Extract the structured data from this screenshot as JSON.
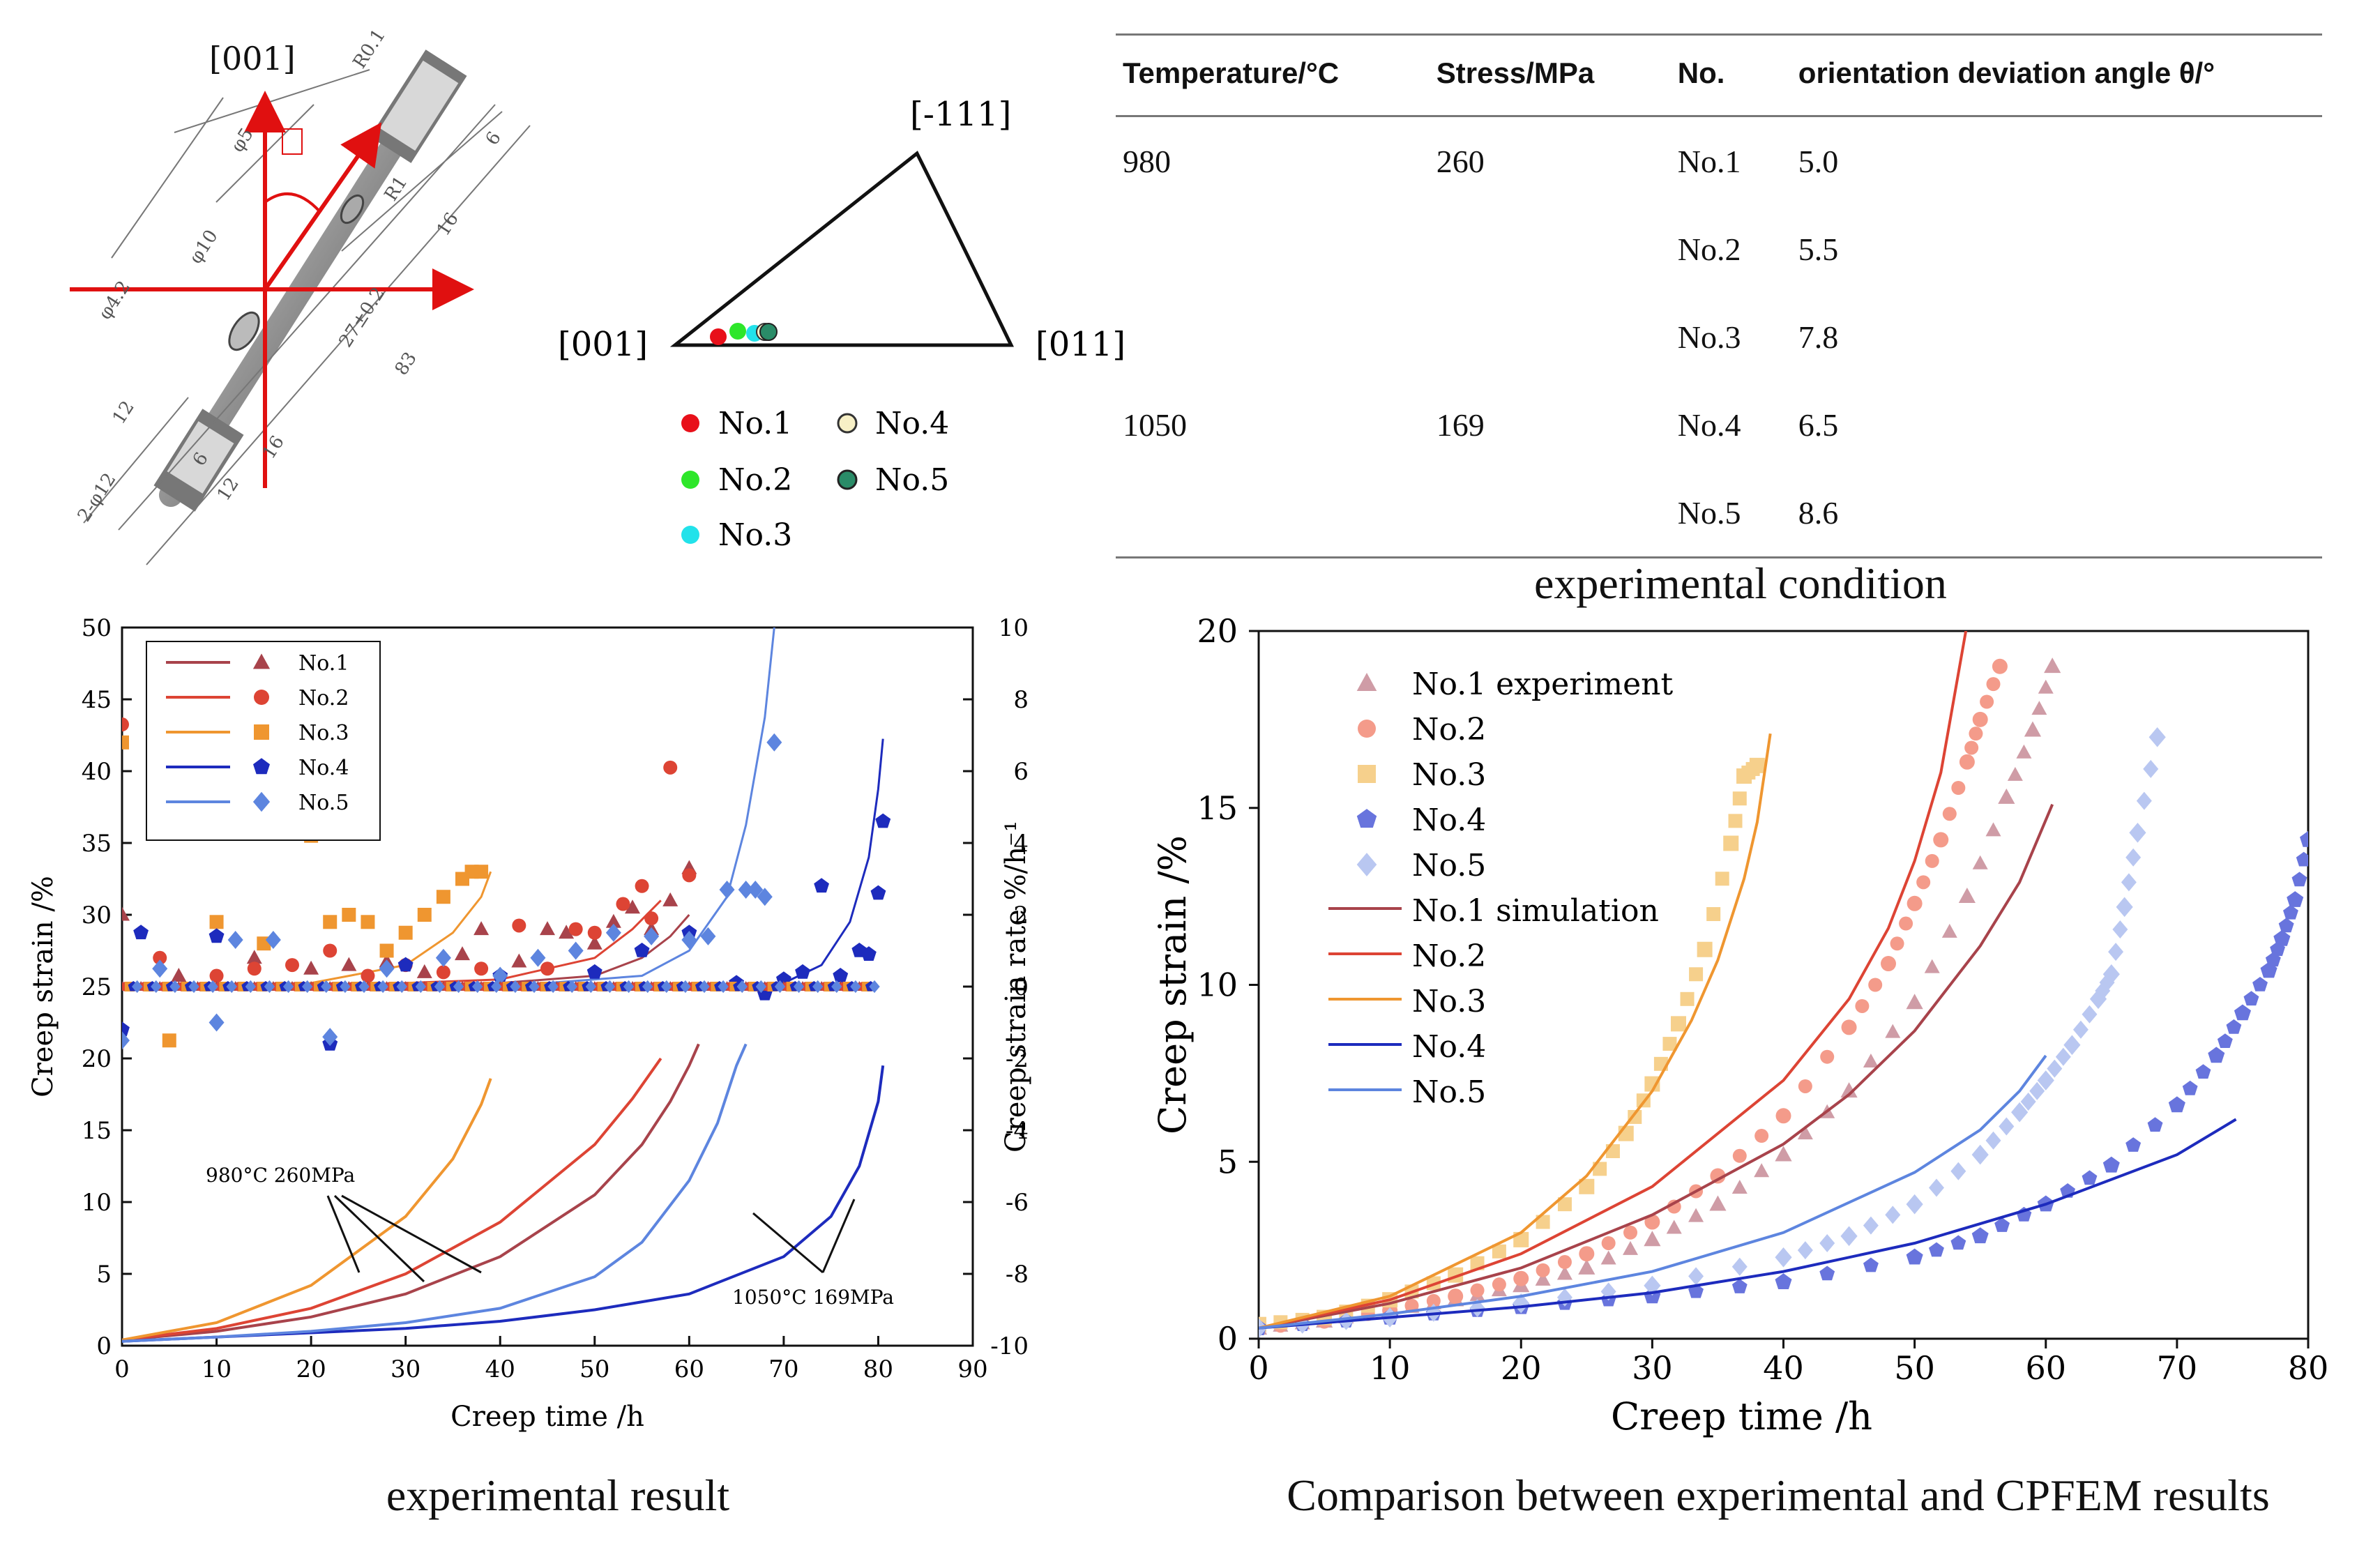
{
  "specimen": {
    "dim_labels": [
      "[001]",
      "R0.1",
      "φ5",
      "R1",
      "16",
      "6",
      "φ10",
      "27±0.2",
      "83",
      "φ4.2",
      "12",
      "2-φ12",
      "6",
      "12",
      "16"
    ]
  },
  "ipf": {
    "labels": {
      "top": "[-111]",
      "left": "[001]",
      "right": "[011]"
    },
    "legend": [
      {
        "label": "No.1",
        "color": "#e8101a"
      },
      {
        "label": "No.2",
        "color": "#2ee62a"
      },
      {
        "label": "No.3",
        "color": "#22e2ea"
      },
      {
        "label": "No.4",
        "color": "#f7f0c6"
      },
      {
        "label": "No.5",
        "color": "#2a8c68"
      }
    ]
  },
  "table": {
    "headers": [
      "Temperature/°C",
      "Stress/MPa",
      "No.",
      "orientation deviation angle θ/°"
    ],
    "rows": [
      [
        "980",
        "260",
        "No.1",
        "5.0"
      ],
      [
        "",
        "",
        "No.2",
        "5.5"
      ],
      [
        "",
        "",
        "No.3",
        "7.8"
      ],
      [
        "1050",
        "169",
        "No.4",
        "6.5"
      ],
      [
        "",
        "",
        "No.5",
        "8.6"
      ]
    ]
  },
  "captions": {
    "table": "experimental condition",
    "left": "experimental result",
    "right": "Comparison between experimental and CPFEM results"
  },
  "colors": {
    "no1": "#a8434b",
    "no2": "#dd4434",
    "no3": "#ef9630",
    "no4": "#1d2bbd",
    "no5": "#5d85df",
    "no1_light": "#cf9ca6",
    "no2_light": "#f49b8a",
    "no3_light": "#f6d08c",
    "no4_light": "#6874dd",
    "no5_light": "#b9c7f1"
  },
  "chart_data": [
    {
      "type": "line",
      "title": "",
      "xlabel": "Creep time /h",
      "ylabel": "Creep strain /%",
      "y2label": "Creep strain rate %/h⁻¹",
      "xlim": [
        0,
        90
      ],
      "ylim": [
        0,
        50
      ],
      "y2lim": [
        -10,
        10
      ],
      "xticks": [
        0,
        10,
        20,
        30,
        40,
        50,
        60,
        70,
        80,
        90
      ],
      "yticks": [
        0,
        5,
        10,
        15,
        20,
        25,
        30,
        35,
        40,
        45,
        50
      ],
      "y2ticks": [
        -10,
        -8,
        -6,
        -4,
        -2,
        0,
        2,
        4,
        6,
        8,
        10
      ],
      "legend": [
        "No.1",
        "No.2",
        "No.3",
        "No.4",
        "No.5"
      ],
      "annotations": [
        "980°C 260MPa",
        "1050°C 169MPa"
      ],
      "strain_series": [
        {
          "name": "No.1",
          "x": [
            0,
            10,
            20,
            30,
            40,
            50,
            55,
            58,
            60,
            61
          ],
          "y": [
            0.4,
            1.0,
            2.0,
            3.6,
            6.2,
            10.5,
            14.0,
            17.0,
            19.5,
            21.0
          ]
        },
        {
          "name": "No.2",
          "x": [
            0,
            10,
            20,
            30,
            40,
            50,
            54,
            57
          ],
          "y": [
            0.4,
            1.2,
            2.6,
            5.0,
            8.6,
            14.0,
            17.2,
            20.0
          ]
        },
        {
          "name": "No.3",
          "x": [
            0,
            10,
            20,
            30,
            35,
            38,
            39
          ],
          "y": [
            0.4,
            1.6,
            4.2,
            9.0,
            13.0,
            16.8,
            18.6
          ]
        },
        {
          "name": "No.4",
          "x": [
            0,
            10,
            20,
            30,
            40,
            50,
            60,
            70,
            75,
            78,
            80,
            80.5
          ],
          "y": [
            0.3,
            0.6,
            0.9,
            1.2,
            1.7,
            2.5,
            3.6,
            6.2,
            9.0,
            12.5,
            17.0,
            19.5
          ]
        },
        {
          "name": "No.5",
          "x": [
            0,
            10,
            20,
            30,
            40,
            50,
            55,
            60,
            63,
            65,
            66
          ],
          "y": [
            0.3,
            0.6,
            1.0,
            1.6,
            2.6,
            4.8,
            7.2,
            11.5,
            15.5,
            19.5,
            21.0
          ]
        }
      ],
      "rate_markers": [
        {
          "name": "No.1",
          "marker": "triangle",
          "x": [
            0,
            6,
            14,
            20,
            24,
            28,
            32,
            36,
            38,
            42,
            45,
            47,
            50,
            52,
            54,
            56,
            58,
            60
          ],
          "y": [
            2.0,
            0.3,
            0.8,
            0.5,
            0.6,
            0.7,
            0.4,
            0.9,
            1.6,
            0.7,
            1.6,
            1.5,
            1.2,
            1.8,
            2.2,
            1.6,
            2.4,
            3.3
          ]
        },
        {
          "name": "No.2",
          "marker": "circle",
          "x": [
            0,
            4,
            10,
            14,
            18,
            22,
            26,
            30,
            34,
            38,
            42,
            45,
            48,
            50,
            53,
            55,
            56,
            58,
            60
          ],
          "y": [
            7.3,
            0.8,
            0.3,
            0.5,
            0.6,
            1.0,
            0.3,
            0.6,
            0.4,
            0.5,
            1.7,
            0.5,
            1.6,
            1.5,
            2.3,
            2.8,
            1.9,
            6.1,
            3.1
          ]
        },
        {
          "name": "No.3",
          "marker": "square",
          "x": [
            0,
            5,
            10,
            15,
            20,
            22,
            24,
            26,
            28,
            30,
            32,
            34,
            36,
            37,
            38
          ],
          "y": [
            6.8,
            -1.5,
            1.8,
            1.2,
            4.2,
            1.8,
            2.0,
            1.8,
            1.0,
            1.5,
            2.0,
            2.5,
            3.0,
            3.2,
            3.2
          ]
        },
        {
          "name": "No.4",
          "marker": "pentagon",
          "x": [
            0,
            2,
            10,
            22,
            30,
            40,
            50,
            55,
            60,
            65,
            68,
            70,
            72,
            74,
            76,
            78,
            79,
            80,
            80.5
          ],
          "y": [
            -1.2,
            1.5,
            1.4,
            -1.6,
            0.6,
            0.3,
            0.4,
            1.0,
            1.5,
            0.1,
            -0.2,
            0.2,
            0.4,
            2.8,
            0.3,
            1.0,
            0.9,
            2.6,
            4.6
          ]
        },
        {
          "name": "No.5",
          "marker": "diamond",
          "x": [
            0,
            4,
            10,
            12,
            16,
            22,
            28,
            34,
            40,
            44,
            48,
            52,
            56,
            60,
            62,
            64,
            66,
            67,
            68,
            69
          ],
          "y": [
            -1.5,
            0.5,
            -1.0,
            1.3,
            1.3,
            -1.4,
            0.5,
            0.8,
            0.3,
            0.8,
            1.0,
            1.5,
            1.4,
            1.3,
            1.4,
            2.7,
            2.7,
            2.7,
            2.5,
            6.8
          ]
        }
      ],
      "rate_lines": [
        {
          "name": "No.1",
          "x": [
            0,
            20,
            40,
            50,
            55,
            58,
            60
          ],
          "y": [
            0.0,
            0.0,
            0.1,
            0.3,
            0.8,
            1.4,
            2.0
          ]
        },
        {
          "name": "No.2",
          "x": [
            0,
            20,
            40,
            50,
            54,
            57
          ],
          "y": [
            0.0,
            0.0,
            0.2,
            0.8,
            1.6,
            2.4
          ]
        },
        {
          "name": "No.3",
          "x": [
            0,
            20,
            30,
            35,
            38,
            39
          ],
          "y": [
            0.0,
            0.1,
            0.6,
            1.5,
            2.5,
            3.2
          ]
        },
        {
          "name": "No.4",
          "x": [
            0,
            40,
            60,
            70,
            74,
            77,
            79,
            80,
            80.5
          ],
          "y": [
            0.0,
            0.0,
            0.0,
            0.1,
            0.6,
            1.8,
            3.6,
            5.5,
            6.9
          ]
        },
        {
          "name": "No.5",
          "x": [
            0,
            40,
            55,
            60,
            64,
            66,
            68,
            69
          ],
          "y": [
            0.0,
            0.0,
            0.3,
            1.0,
            2.5,
            4.5,
            7.5,
            10.0
          ]
        }
      ]
    },
    {
      "type": "scatter",
      "title": "",
      "xlabel": "Creep time /h",
      "ylabel": "Creep strain /%",
      "xlim": [
        0,
        80
      ],
      "ylim": [
        0,
        20
      ],
      "xticks": [
        0,
        10,
        20,
        30,
        40,
        50,
        60,
        70,
        80
      ],
      "yticks": [
        0,
        5,
        10,
        15,
        20
      ],
      "legend": [
        "No.1 experiment",
        "No.2",
        "No.3",
        "No.4",
        "No.5",
        "No.1 simulation",
        "No.2",
        "No.3",
        "No.4",
        "No.5"
      ],
      "experiment": [
        {
          "name": "No.1",
          "marker": "triangle",
          "x": [
            0,
            5,
            10,
            15,
            20,
            25,
            30,
            35,
            40,
            45,
            50,
            54,
            57,
            59,
            60.5
          ],
          "y": [
            0.3,
            0.5,
            0.8,
            1.1,
            1.5,
            2.0,
            2.8,
            3.8,
            5.2,
            7.0,
            9.5,
            12.5,
            15.3,
            17.2,
            19.0
          ]
        },
        {
          "name": "No.2",
          "marker": "circle",
          "x": [
            0,
            5,
            10,
            15,
            20,
            25,
            30,
            35,
            40,
            45,
            48,
            50,
            52,
            54,
            55,
            56.5
          ],
          "y": [
            0.3,
            0.5,
            0.8,
            1.2,
            1.7,
            2.4,
            3.3,
            4.6,
            6.3,
            8.8,
            10.6,
            12.3,
            14.1,
            16.3,
            17.5,
            19.0
          ]
        },
        {
          "name": "No.3",
          "marker": "square",
          "x": [
            0,
            5,
            10,
            15,
            20,
            25,
            28,
            30,
            32,
            34,
            36,
            37,
            38
          ],
          "y": [
            0.4,
            0.6,
            1.1,
            1.8,
            2.8,
            4.3,
            5.8,
            7.2,
            8.9,
            11.0,
            14.0,
            15.9,
            16.2
          ]
        },
        {
          "name": "No.4",
          "marker": "pentagon",
          "x": [
            0,
            10,
            20,
            30,
            40,
            50,
            55,
            60,
            65,
            70,
            73,
            75,
            77,
            78,
            79,
            80
          ],
          "y": [
            0.3,
            0.6,
            0.9,
            1.2,
            1.6,
            2.3,
            2.9,
            3.8,
            4.9,
            6.6,
            8.0,
            9.2,
            10.4,
            11.3,
            12.4,
            14.1
          ]
        },
        {
          "name": "No.5",
          "marker": "diamond",
          "x": [
            0,
            10,
            20,
            30,
            40,
            45,
            50,
            55,
            58,
            60,
            62,
            64,
            65,
            66,
            67,
            68.5
          ],
          "y": [
            0.3,
            0.6,
            1.0,
            1.5,
            2.3,
            2.9,
            3.8,
            5.2,
            6.4,
            7.3,
            8.3,
            9.6,
            10.3,
            12.2,
            14.3,
            17.0
          ]
        }
      ],
      "simulation": [
        {
          "name": "No.1",
          "x": [
            0,
            10,
            20,
            30,
            40,
            45,
            50,
            55,
            58,
            60.5
          ],
          "y": [
            0.3,
            1.0,
            2.0,
            3.5,
            5.5,
            6.9,
            8.7,
            11.1,
            12.9,
            15.1
          ]
        },
        {
          "name": "No.2",
          "x": [
            0,
            10,
            20,
            30,
            40,
            45,
            48,
            50,
            52,
            54
          ],
          "y": [
            0.3,
            1.1,
            2.4,
            4.3,
            7.3,
            9.6,
            11.6,
            13.5,
            16.0,
            20.2
          ]
        },
        {
          "name": "No.3",
          "x": [
            0,
            10,
            20,
            25,
            30,
            33,
            35,
            37,
            38,
            39
          ],
          "y": [
            0.3,
            1.2,
            3.0,
            4.6,
            7.0,
            9.0,
            10.7,
            13.0,
            14.6,
            17.1
          ]
        },
        {
          "name": "No.4",
          "x": [
            0,
            10,
            20,
            30,
            40,
            50,
            60,
            70,
            74.5
          ],
          "y": [
            0.3,
            0.6,
            0.9,
            1.3,
            1.9,
            2.7,
            3.8,
            5.2,
            6.2
          ]
        },
        {
          "name": "No.5",
          "x": [
            0,
            10,
            20,
            30,
            40,
            50,
            55,
            58,
            60
          ],
          "y": [
            0.3,
            0.7,
            1.2,
            1.9,
            3.0,
            4.7,
            5.9,
            7.0,
            8.0
          ]
        }
      ]
    }
  ]
}
